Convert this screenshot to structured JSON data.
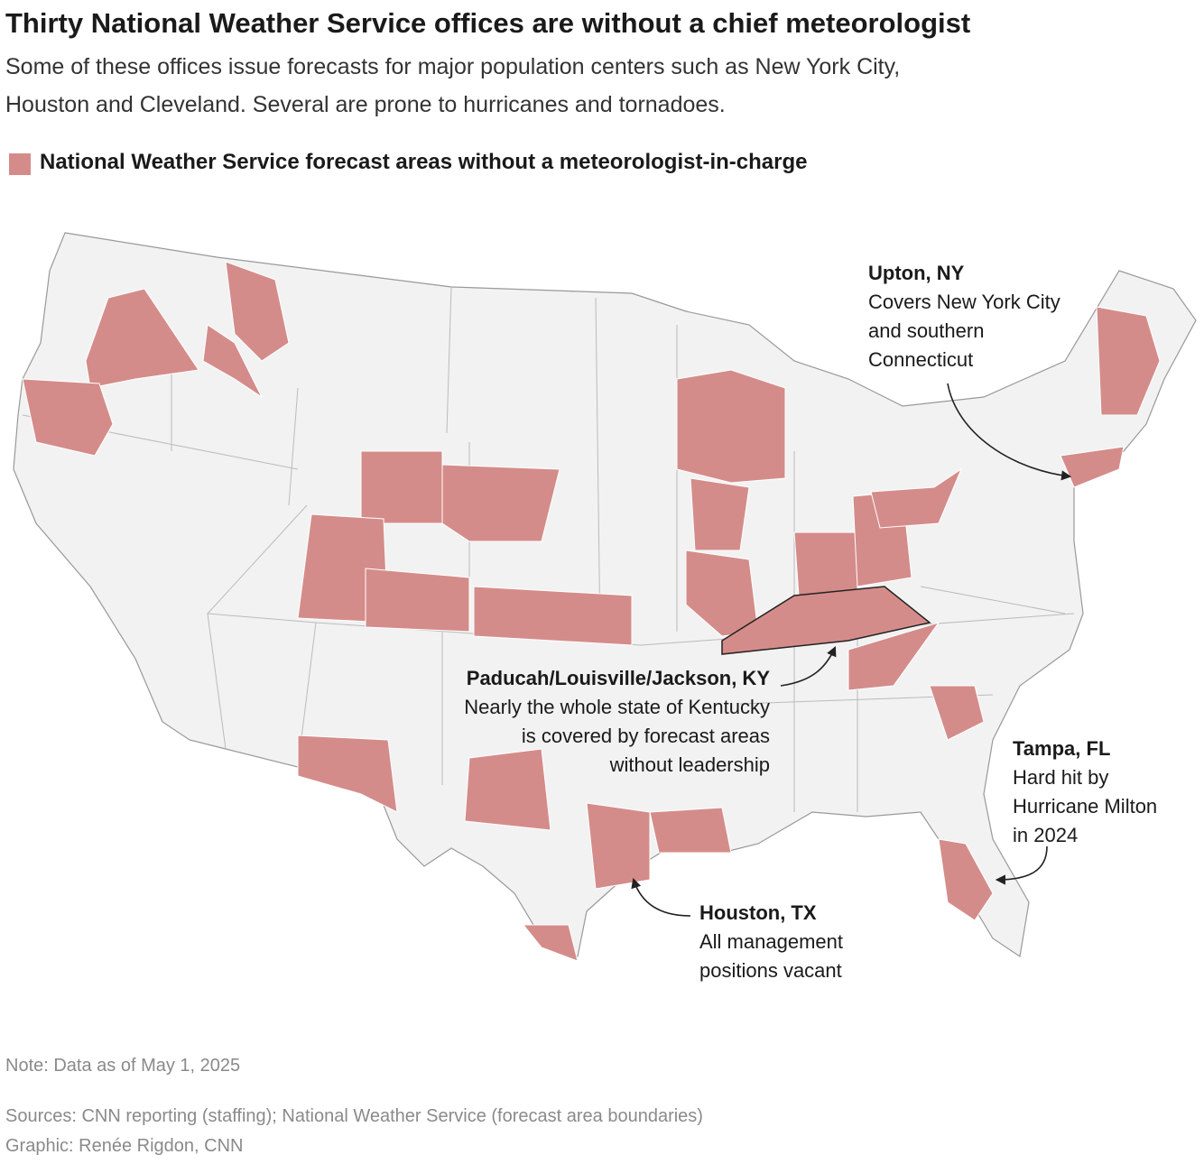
{
  "header": {
    "title": "Thirty National Weather Service offices are without a chief meteorologist",
    "subtitle": [
      "Some of these offices issue forecasts for major population centers such as New York City,",
      "Houston and Cleveland. Several are prone to hurricanes and tornadoes."
    ]
  },
  "legend": {
    "label": "National Weather Service forecast areas without a meteorologist-in-charge",
    "color": "#d48c8a"
  },
  "annotations": [
    {
      "title": "Upton, NY",
      "lines": [
        "Covers New York City",
        "and southern",
        "Connecticut"
      ]
    },
    {
      "title": "Paducah/Louisville/Jackson, KY",
      "lines": [
        "Nearly the whole state of Kentucky",
        "is covered by forecast areas",
        "without leadership"
      ]
    },
    {
      "title": "Tampa, FL",
      "lines": [
        "Hard hit by",
        "Hurricane Milton",
        "in 2024"
      ]
    },
    {
      "title": "Houston, TX",
      "lines": [
        "All management",
        "positions vacant"
      ]
    }
  ],
  "footer": {
    "note": "Note: Data as of May 1, 2025",
    "sources": "Sources: CNN reporting (staffing); National Weather Service (forecast area boundaries)",
    "credit": "Graphic: Renée Rigdon, CNN"
  }
}
